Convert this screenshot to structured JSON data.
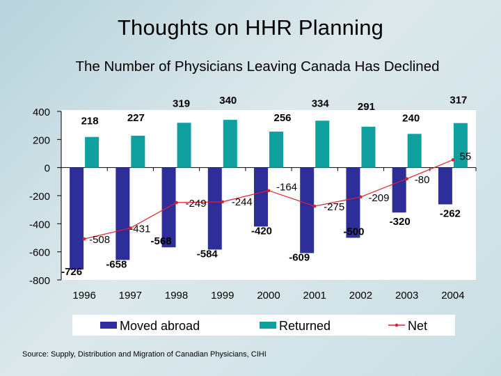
{
  "slide": {
    "title": "Thoughts on HHR Planning",
    "subtitle": "The Number of Physicians Leaving Canada Has Declined",
    "source": "Source:  Supply, Distribution and Migration of Canadian Physicians,  CIHI"
  },
  "chart_data": {
    "type": "bar",
    "categories": [
      "1996",
      "1997",
      "1998",
      "1999",
      "2000",
      "2001",
      "2002",
      "2003",
      "2004"
    ],
    "series": [
      {
        "name": "Moved abroad",
        "type": "bar",
        "color": "#2e2e9a",
        "values": [
          -726,
          -658,
          -568,
          -584,
          -420,
          -609,
          -500,
          -320,
          -262
        ]
      },
      {
        "name": "Returned",
        "type": "bar",
        "color": "#10a0a0",
        "values": [
          218,
          227,
          319,
          340,
          256,
          334,
          291,
          240,
          317
        ]
      },
      {
        "name": "Net",
        "type": "line",
        "color": "#e4202a",
        "values": [
          -508,
          -431,
          -249,
          -244,
          -164,
          -275,
          -209,
          -80,
          55
        ]
      }
    ],
    "yticks": [
      "400",
      "200",
      "0",
      "-200",
      "-400",
      "-600",
      "-800"
    ],
    "ylim": [
      -800,
      400
    ],
    "grid": false,
    "legend_position": "bottom"
  }
}
